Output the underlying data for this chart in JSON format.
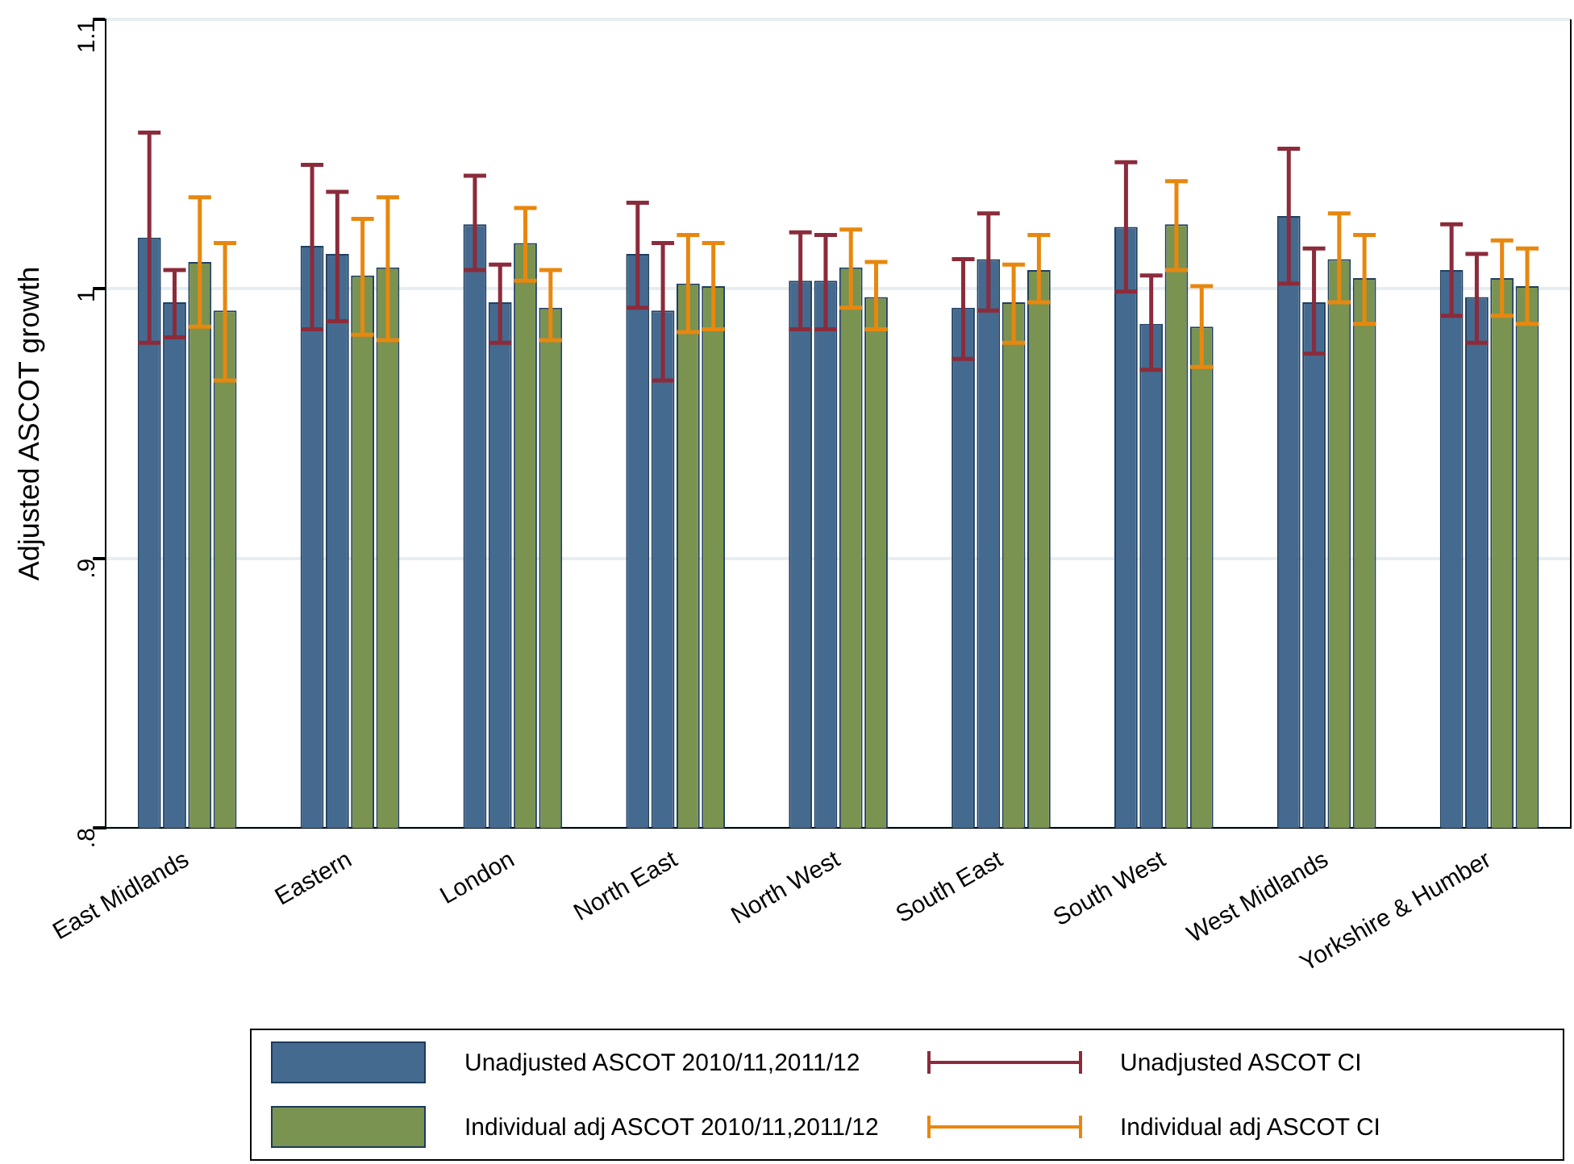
{
  "chart_data": {
    "type": "bar",
    "ylabel": "Adjusted ASCOT growth",
    "categories": [
      "East Midlands",
      "Eastern",
      "London",
      "North East",
      "North West",
      "South East",
      "South West",
      "West Midlands",
      "Yorkshire & Humber"
    ],
    "series": [
      {
        "name": "Unadjusted ASCOT 2010/11,2011/12",
        "color": "#456a8f",
        "values": [
          1.019,
          1.016,
          1.024,
          1.013,
          1.003,
          0.993,
          1.023,
          1.027,
          1.007
        ],
        "errors": [
          [
            0.98,
            1.058
          ],
          [
            0.985,
            1.046
          ],
          [
            1.007,
            1.042
          ],
          [
            0.993,
            1.032
          ],
          [
            0.985,
            1.021
          ],
          [
            0.974,
            1.011
          ],
          [
            0.999,
            1.047
          ],
          [
            1.002,
            1.052
          ],
          [
            0.99,
            1.024
          ]
        ]
      },
      {
        "color": "#456a8f",
        "values": [
          0.995,
          1.013,
          0.995,
          0.992,
          1.003,
          1.011,
          0.987,
          0.995,
          0.997
        ],
        "errors": [
          [
            0.982,
            1.007
          ],
          [
            0.988,
            1.036
          ],
          [
            0.98,
            1.009
          ],
          [
            0.966,
            1.017
          ],
          [
            0.985,
            1.02
          ],
          [
            0.992,
            1.028
          ],
          [
            0.97,
            1.005
          ],
          [
            0.976,
            1.015
          ],
          [
            0.98,
            1.013
          ]
        ]
      },
      {
        "name": "Individual adj ASCOT 2010/11,2011/12",
        "color": "#7a9350",
        "values": [
          1.01,
          1.005,
          1.017,
          1.002,
          1.008,
          0.995,
          1.024,
          1.011,
          1.004
        ],
        "errors": [
          [
            0.986,
            1.034
          ],
          [
            0.983,
            1.026
          ],
          [
            1.003,
            1.03
          ],
          [
            0.984,
            1.02
          ],
          [
            0.993,
            1.022
          ],
          [
            0.98,
            1.009
          ],
          [
            1.007,
            1.04
          ],
          [
            0.995,
            1.028
          ],
          [
            0.99,
            1.018
          ]
        ]
      },
      {
        "color": "#7a9350",
        "values": [
          0.992,
          1.008,
          0.993,
          1.001,
          0.997,
          1.007,
          0.986,
          1.004,
          1.001
        ],
        "errors": [
          [
            0.966,
            1.017
          ],
          [
            0.981,
            1.034
          ],
          [
            0.981,
            1.007
          ],
          [
            0.985,
            1.017
          ],
          [
            0.985,
            1.01
          ],
          [
            0.995,
            1.02
          ],
          [
            0.971,
            1.001
          ],
          [
            0.987,
            1.02
          ],
          [
            0.987,
            1.015
          ]
        ]
      }
    ],
    "annotations": [
      "Unadjusted ASCOT CI",
      "Individual adj ASCOT CI"
    ],
    "ylim": [
      0.8,
      1.1
    ],
    "yticks": [
      {
        "value": 0.8,
        "label": ".8"
      },
      {
        "value": 0.9,
        "label": ".9"
      },
      {
        "value": 1,
        "label": "1"
      },
      {
        "value": 1.1,
        "label": "1.1"
      }
    ],
    "grid": "y",
    "legend": "bottom"
  }
}
